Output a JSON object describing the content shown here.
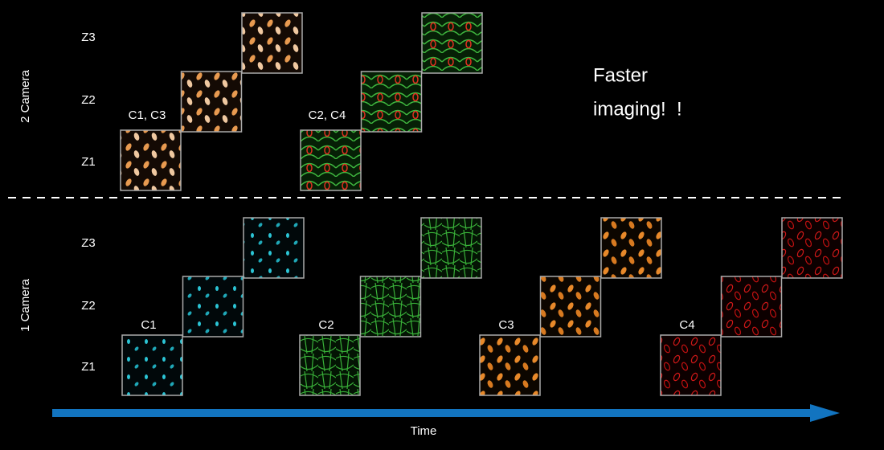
{
  "sections": [
    {
      "label": "2 Camera",
      "z_labels": [
        "Z3",
        "Z2",
        "Z1"
      ],
      "groups": [
        "C1, C3",
        "C2, C4"
      ]
    },
    {
      "label": "1 Camera",
      "z_labels": [
        "Z3",
        "Z2",
        "Z1"
      ],
      "groups": [
        "C1",
        "C2",
        "C3",
        "C4"
      ]
    }
  ],
  "note": [
    "Faster",
    "imaging!  !"
  ],
  "axis_label": "Time"
}
